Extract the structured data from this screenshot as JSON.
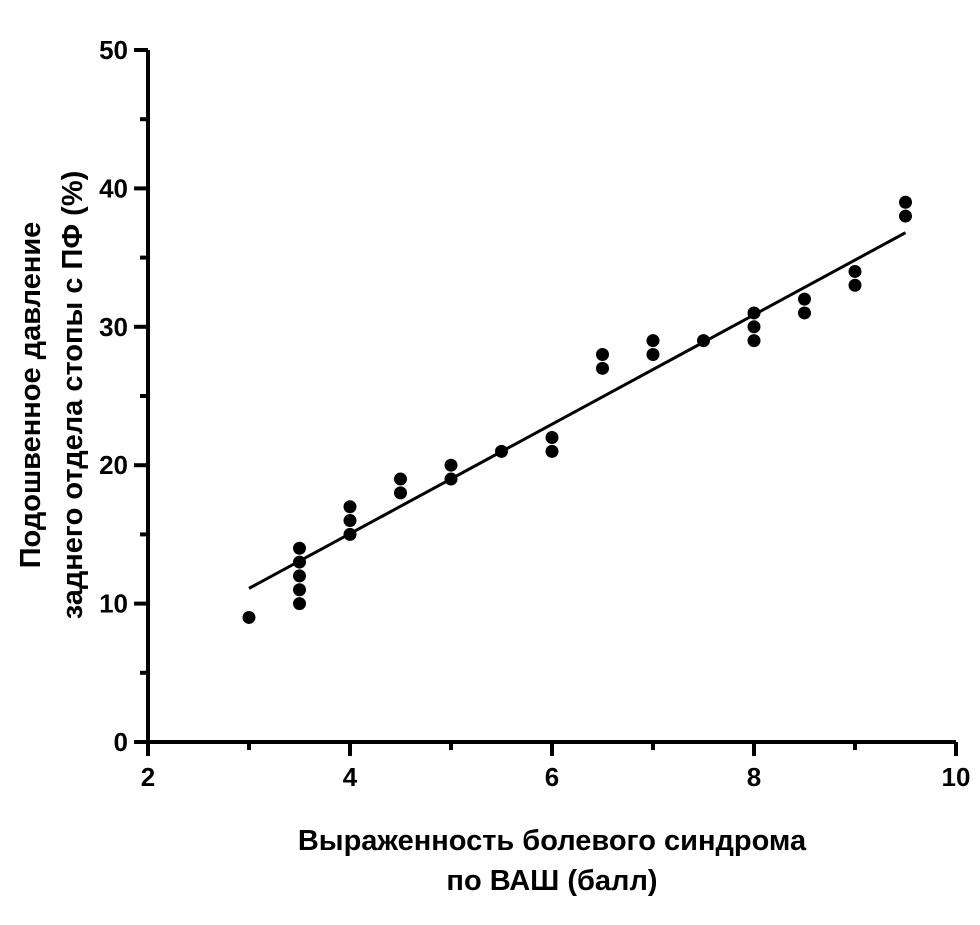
{
  "chart_data": {
    "type": "scatter",
    "xlabel": [
      "Выраженность болевого синдрома",
      "по ВАШ (балл)"
    ],
    "ylabel": [
      "Подошвенное давление",
      "заднего отдела стопы с ПФ (%)"
    ],
    "xlim": [
      2,
      10
    ],
    "ylim": [
      0,
      50
    ],
    "x_ticks": [
      2,
      4,
      6,
      8,
      10
    ],
    "y_ticks": [
      0,
      10,
      20,
      30,
      40,
      50
    ],
    "grid": false,
    "points": [
      {
        "x": 3,
        "y": 9
      },
      {
        "x": 3.5,
        "y": 10
      },
      {
        "x": 3.5,
        "y": 11
      },
      {
        "x": 3.5,
        "y": 12
      },
      {
        "x": 3.5,
        "y": 13
      },
      {
        "x": 3.5,
        "y": 14
      },
      {
        "x": 4,
        "y": 15
      },
      {
        "x": 4,
        "y": 16
      },
      {
        "x": 4,
        "y": 17
      },
      {
        "x": 4.5,
        "y": 18
      },
      {
        "x": 4.5,
        "y": 19
      },
      {
        "x": 5,
        "y": 19
      },
      {
        "x": 5,
        "y": 20
      },
      {
        "x": 5.5,
        "y": 21
      },
      {
        "x": 6,
        "y": 21
      },
      {
        "x": 6,
        "y": 22
      },
      {
        "x": 6.5,
        "y": 27
      },
      {
        "x": 6.5,
        "y": 28
      },
      {
        "x": 7,
        "y": 28
      },
      {
        "x": 7,
        "y": 29
      },
      {
        "x": 7.5,
        "y": 29
      },
      {
        "x": 8,
        "y": 29
      },
      {
        "x": 8,
        "y": 30
      },
      {
        "x": 8,
        "y": 31
      },
      {
        "x": 8.5,
        "y": 31
      },
      {
        "x": 8.5,
        "y": 32
      },
      {
        "x": 9,
        "y": 33
      },
      {
        "x": 9,
        "y": 34
      },
      {
        "x": 9.5,
        "y": 38
      },
      {
        "x": 9.5,
        "y": 39
      }
    ],
    "regression_line": {
      "x": [
        3,
        9.5
      ],
      "y": [
        11.1,
        36.8
      ]
    },
    "colors": {
      "points": "#000000",
      "line": "#000000",
      "axes": "#000000"
    }
  }
}
